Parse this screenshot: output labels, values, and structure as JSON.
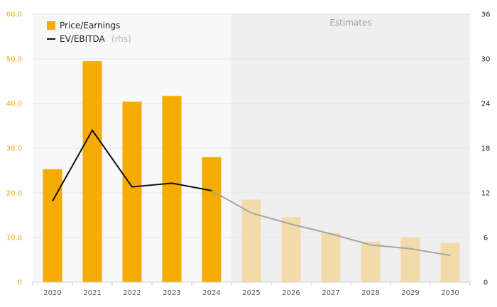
{
  "chart_data": {
    "type": "bar",
    "categories": [
      "2020",
      "2021",
      "2022",
      "2023",
      "2024",
      "2025",
      "2026",
      "2027",
      "2028",
      "2029",
      "2030"
    ],
    "series": [
      {
        "name": "Price/Earnings",
        "axis": "left",
        "type": "bar",
        "values": [
          25.3,
          49.5,
          40.4,
          41.7,
          28.0,
          18.5,
          14.6,
          11.0,
          9.1,
          10.0,
          8.8
        ],
        "estimate_from_index": 5
      },
      {
        "name": "EV/EBITDA",
        "name_suffix": "(rhs)",
        "axis": "right",
        "type": "line",
        "values": [
          10.9,
          20.4,
          12.8,
          13.3,
          12.3,
          9.3,
          7.8,
          6.5,
          5.0,
          4.5,
          3.6
        ],
        "estimate_from_index": 4
      }
    ],
    "left_axis": {
      "ylim": [
        0,
        60
      ],
      "ticks": [
        "0",
        "10.0",
        "20.0",
        "30.0",
        "40.0",
        "50.0",
        "60.0"
      ]
    },
    "right_axis": {
      "ylim": [
        0,
        36
      ],
      "ticks": [
        "0",
        "6",
        "12",
        "18",
        "24",
        "30",
        "36"
      ]
    },
    "estimates_label": "Estimates",
    "legend_position": "top-left",
    "colors": {
      "bar": "#f5ab00",
      "bar_estimate": "#f2dba8",
      "line": "#111111",
      "line_estimate": "#a6a6a6",
      "left_axis_text": "#f0a800",
      "shade": "#efefef",
      "plot_bg": "#f8f8f8"
    }
  }
}
